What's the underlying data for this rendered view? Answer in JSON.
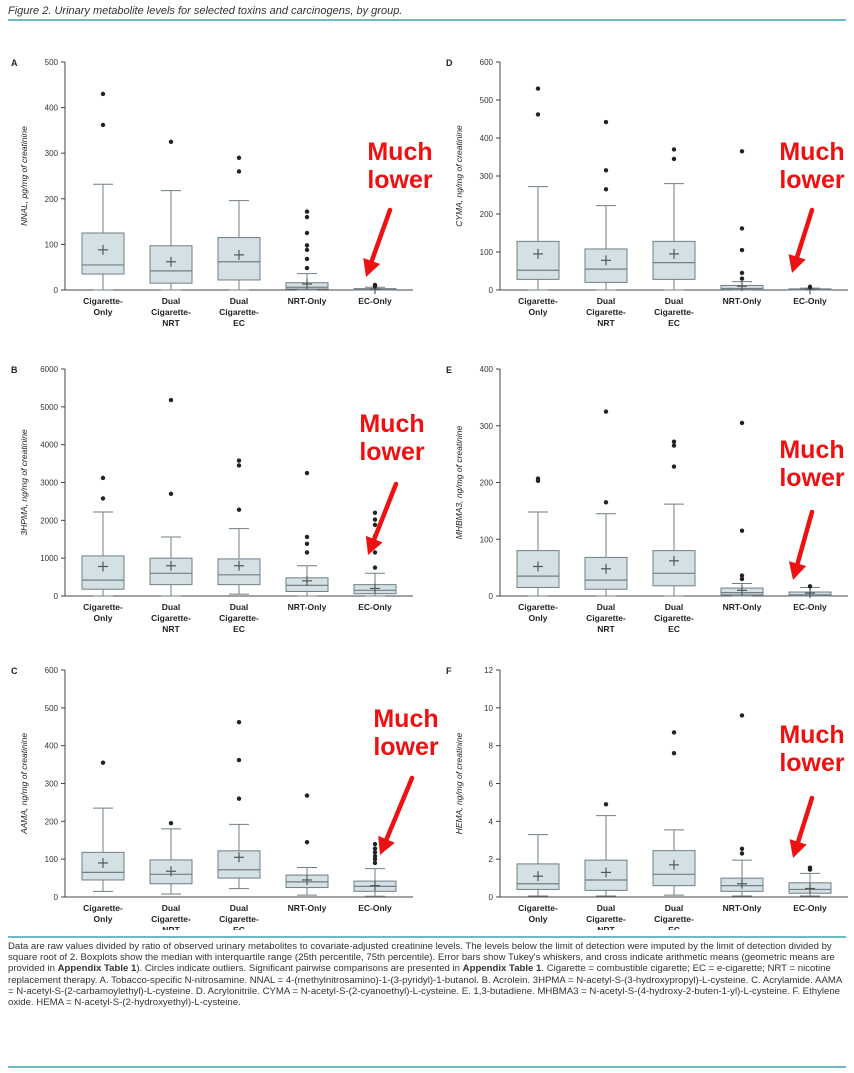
{
  "figure_title": "Figure 2. Urinary metabolite levels for selected toxins and carcinogens, by group.",
  "annotation_text_1": "Much",
  "annotation_text_2": "lower",
  "colors": {
    "box_fill": "#d4e1e4",
    "box_stroke": "#6f7f85",
    "annotation": "#ee1111",
    "rule": "#6fb8c8"
  },
  "chart_data": [
    {
      "type": "box",
      "panel": "A",
      "ylabel": "NNAL, pg/mg of creatinine",
      "ylim": [
        0,
        500
      ],
      "yticks": [
        0,
        100,
        200,
        300,
        400,
        500
      ],
      "categories": [
        "Cigarette-Only",
        "Dual Cigarette-NRT",
        "Dual Cigarette-EC",
        "NRT-Only",
        "EC-Only"
      ],
      "boxes": [
        {
          "q1": 35,
          "median": 55,
          "q3": 125,
          "whisker_low": 0,
          "whisker_high": 232,
          "mean": 88,
          "outliers": [
            362,
            430
          ]
        },
        {
          "q1": 15,
          "median": 42,
          "q3": 97,
          "whisker_low": 0,
          "whisker_high": 218,
          "mean": 62,
          "outliers": [
            325
          ]
        },
        {
          "q1": 22,
          "median": 62,
          "q3": 115,
          "whisker_low": 0,
          "whisker_high": 196,
          "mean": 77,
          "outliers": [
            260,
            290
          ]
        },
        {
          "q1": 2,
          "median": 6,
          "q3": 16,
          "whisker_low": 0,
          "whisker_high": 36,
          "mean": 13,
          "outliers": [
            48,
            68,
            88,
            98,
            125,
            160,
            172
          ]
        },
        {
          "q1": 0,
          "median": 1,
          "q3": 3,
          "whisker_low": 0,
          "whisker_high": 6,
          "mean": 2,
          "outliers": [
            8,
            11
          ]
        }
      ]
    },
    {
      "type": "box",
      "panel": "D",
      "ylabel": "CYMA, ng/mg of creatinine",
      "ylim": [
        0,
        600
      ],
      "yticks": [
        0,
        100,
        200,
        300,
        400,
        500,
        600
      ],
      "categories": [
        "Cigarette-Only",
        "Dual Cigarette-NRT",
        "Dual Cigarette-EC",
        "NRT-Only",
        "EC-Only"
      ],
      "boxes": [
        {
          "q1": 28,
          "median": 52,
          "q3": 128,
          "whisker_low": 0,
          "whisker_high": 272,
          "mean": 95,
          "outliers": [
            462,
            530
          ]
        },
        {
          "q1": 20,
          "median": 55,
          "q3": 108,
          "whisker_low": 0,
          "whisker_high": 222,
          "mean": 78,
          "outliers": [
            265,
            315,
            442
          ]
        },
        {
          "q1": 28,
          "median": 72,
          "q3": 128,
          "whisker_low": 0,
          "whisker_high": 280,
          "mean": 95,
          "outliers": [
            345,
            370
          ]
        },
        {
          "q1": 1,
          "median": 4,
          "q3": 12,
          "whisker_low": 0,
          "whisker_high": 22,
          "mean": 10,
          "outliers": [
            30,
            45,
            105,
            162,
            365
          ]
        },
        {
          "q1": 0,
          "median": 1,
          "q3": 3,
          "whisker_low": 0,
          "whisker_high": 5,
          "mean": 2,
          "outliers": [
            8
          ]
        }
      ]
    },
    {
      "type": "box",
      "panel": "B",
      "ylabel": "3HPMA, ng/mg of creatinine",
      "ylim": [
        0,
        6000
      ],
      "yticks": [
        0,
        1000,
        2000,
        3000,
        4000,
        5000,
        6000
      ],
      "categories": [
        "Cigarette-Only",
        "Dual Cigarette-NRT",
        "Dual Cigarette-EC",
        "NRT-Only",
        "EC-Only"
      ],
      "boxes": [
        {
          "q1": 180,
          "median": 420,
          "q3": 1060,
          "whisker_low": 0,
          "whisker_high": 2220,
          "mean": 780,
          "outliers": [
            2580,
            3120
          ]
        },
        {
          "q1": 300,
          "median": 600,
          "q3": 1000,
          "whisker_low": 0,
          "whisker_high": 1560,
          "mean": 800,
          "outliers": [
            2700,
            5180
          ]
        },
        {
          "q1": 300,
          "median": 560,
          "q3": 980,
          "whisker_low": 50,
          "whisker_high": 1780,
          "mean": 800,
          "outliers": [
            2280,
            3450,
            3580
          ]
        },
        {
          "q1": 120,
          "median": 280,
          "q3": 480,
          "whisker_low": 0,
          "whisker_high": 800,
          "mean": 400,
          "outliers": [
            1150,
            1380,
            1560,
            3250
          ]
        },
        {
          "q1": 60,
          "median": 150,
          "q3": 300,
          "whisker_low": 0,
          "whisker_high": 600,
          "mean": 200,
          "outliers": [
            750,
            1150,
            1580,
            1880,
            2020,
            2200
          ]
        }
      ]
    },
    {
      "type": "box",
      "panel": "E",
      "ylabel": "MHBMA3, ng/mg of creatinine",
      "ylim": [
        0,
        400
      ],
      "yticks": [
        0,
        100,
        200,
        300,
        400
      ],
      "categories": [
        "Cigarette-Only",
        "Dual Cigarette-NRT",
        "Dual Cigarette-EC",
        "NRT-Only",
        "EC-Only"
      ],
      "boxes": [
        {
          "q1": 15,
          "median": 35,
          "q3": 80,
          "whisker_low": 0,
          "whisker_high": 148,
          "mean": 52,
          "outliers": [
            203,
            207
          ]
        },
        {
          "q1": 12,
          "median": 28,
          "q3": 68,
          "whisker_low": 0,
          "whisker_high": 145,
          "mean": 48,
          "outliers": [
            165,
            325
          ]
        },
        {
          "q1": 18,
          "median": 40,
          "q3": 80,
          "whisker_low": 0,
          "whisker_high": 162,
          "mean": 62,
          "outliers": [
            228,
            265,
            272
          ]
        },
        {
          "q1": 2,
          "median": 6,
          "q3": 14,
          "whisker_low": 0,
          "whisker_high": 22,
          "mean": 10,
          "outliers": [
            30,
            36,
            115,
            305
          ]
        },
        {
          "q1": 0,
          "median": 2,
          "q3": 7,
          "whisker_low": 0,
          "whisker_high": 15,
          "mean": 5,
          "outliers": [
            17
          ]
        }
      ]
    },
    {
      "type": "box",
      "panel": "C",
      "ylabel": "AAMA, ng/mg of creatinine",
      "ylim": [
        0,
        600
      ],
      "yticks": [
        0,
        100,
        200,
        300,
        400,
        500,
        600
      ],
      "categories": [
        "Cigarette-Only",
        "Dual Cigarette-NRT",
        "Dual Cigarette-EC",
        "NRT-Only",
        "EC-Only"
      ],
      "boxes": [
        {
          "q1": 45,
          "median": 65,
          "q3": 118,
          "whisker_low": 15,
          "whisker_high": 235,
          "mean": 90,
          "outliers": [
            355
          ]
        },
        {
          "q1": 35,
          "median": 60,
          "q3": 98,
          "whisker_low": 8,
          "whisker_high": 180,
          "mean": 68,
          "outliers": [
            195
          ]
        },
        {
          "q1": 50,
          "median": 72,
          "q3": 122,
          "whisker_low": 22,
          "whisker_high": 192,
          "mean": 105,
          "outliers": [
            260,
            362,
            462
          ]
        },
        {
          "q1": 25,
          "median": 40,
          "q3": 58,
          "whisker_low": 5,
          "whisker_high": 78,
          "mean": 45,
          "outliers": [
            145,
            268
          ]
        },
        {
          "q1": 15,
          "median": 28,
          "q3": 42,
          "whisker_low": 2,
          "whisker_high": 75,
          "mean": 30,
          "outliers": [
            90,
            100,
            108,
            118,
            128,
            140
          ]
        }
      ]
    },
    {
      "type": "box",
      "panel": "F",
      "ylabel": "HEMA, ng/mg of creatinine",
      "ylim": [
        0,
        12
      ],
      "yticks": [
        0,
        2,
        4,
        6,
        8,
        10,
        12
      ],
      "categories": [
        "Cigarette-Only",
        "Dual Cigarette-NRT",
        "Dual Cigarette-EC",
        "NRT-Only",
        "EC-Only"
      ],
      "boxes": [
        {
          "q1": 0.4,
          "median": 0.7,
          "q3": 1.75,
          "whisker_low": 0.05,
          "whisker_high": 3.3,
          "mean": 1.1,
          "outliers": []
        },
        {
          "q1": 0.35,
          "median": 0.9,
          "q3": 1.95,
          "whisker_low": 0.05,
          "whisker_high": 4.3,
          "mean": 1.3,
          "outliers": [
            4.9
          ]
        },
        {
          "q1": 0.6,
          "median": 1.2,
          "q3": 2.45,
          "whisker_low": 0.1,
          "whisker_high": 3.55,
          "mean": 1.7,
          "outliers": [
            7.6,
            8.7
          ]
        },
        {
          "q1": 0.3,
          "median": 0.6,
          "q3": 1.0,
          "whisker_low": 0.05,
          "whisker_high": 1.95,
          "mean": 0.7,
          "outliers": [
            2.3,
            2.55,
            9.6
          ]
        },
        {
          "q1": 0.2,
          "median": 0.4,
          "q3": 0.75,
          "whisker_low": 0.05,
          "whisker_high": 1.25,
          "mean": 0.45,
          "outliers": [
            1.45,
            1.55
          ]
        }
      ]
    }
  ],
  "caption": {
    "part1": "Data are raw values divided by ratio of observed urinary metabolites to covariate-adjusted creatinine levels. The levels below the limit of detection were imputed by the limit of detection divided by square root of 2. Boxplots show the median with interquartile range (25th percentile, 75th percentile). Error bars show Tukey's whiskers, and cross indicate arithmetic means (geometric means are provided in ",
    "ref1": "Appendix Table 1",
    "part2": "). Circles indicate outliers. Significant pairwise comparisons are presented in ",
    "ref2": "Appendix Table 1",
    "part3": ". Cigarette = combustible cigarette; EC = e-cigarette; NRT = nicotine replacement therapy. A. Tobacco-specific N-nitrosamine. NNAL = 4-(methylnitrosamino)-1-(3-pyridyl)-1-butanol. B. Acrolein. 3HPMA = N-acetyl-S-(3-hydroxypropyl)-L-cysteine. C. Acrylamide. AAMA = N-acetyl-S-(2-carbamoylethyl)-L-cysteine. D. Acrylonitrile. CYMA = N-acetyl-S-(2-cyanoethyl)-L-cysteine. E. 1,3-butadiene. MHBMA3 = N-acetyl-S-(4-hydroxy-2-buten-1-yl)-L-cysteine. F. Ethylene oxide. HEMA = N-acetyl-S-(2-hydroxyethyl)-L-cysteine."
  }
}
